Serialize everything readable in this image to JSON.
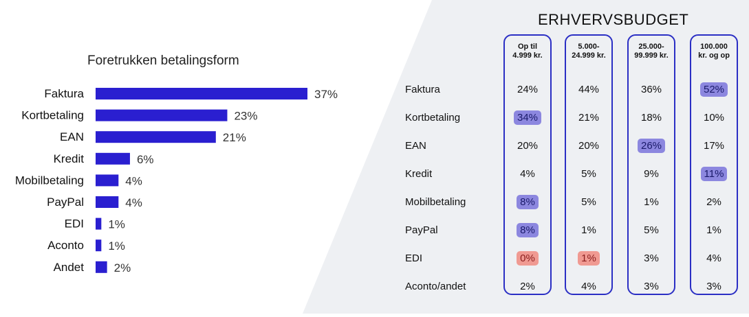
{
  "chart_data": [
    {
      "type": "bar",
      "orientation": "horizontal",
      "title": "Foretrukken betalingsform",
      "categories": [
        "Faktura",
        "Kortbetaling",
        "EAN",
        "Kredit",
        "Mobilbetaling",
        "PayPal",
        "EDI",
        "Aconto",
        "Andet"
      ],
      "values": [
        37,
        23,
        21,
        6,
        4,
        4,
        1,
        1,
        2
      ],
      "value_labels": [
        "37%",
        "23%",
        "21%",
        "6%",
        "4%",
        "4%",
        "1%",
        "1%",
        "2%"
      ],
      "unit": "%",
      "xlim": [
        0,
        37
      ],
      "bar_color": "#2a1fd0",
      "grid": false
    },
    {
      "type": "table",
      "title": "ERHVERVSBUDGET",
      "columns": [
        "Op til 4.999 kr.",
        "5.000-24.999 kr.",
        "25.000-99.999 kr.",
        "100.000 kr. og op"
      ],
      "rows": [
        "Faktura",
        "Kortbetaling",
        "EAN",
        "Kredit",
        "Mobilbetaling",
        "PayPal",
        "EDI",
        "Aconto/andet"
      ],
      "cells": [
        [
          "24%",
          "44%",
          "36%",
          "52%"
        ],
        [
          "34%",
          "21%",
          "18%",
          "10%"
        ],
        [
          "20%",
          "20%",
          "26%",
          "17%"
        ],
        [
          "4%",
          "5%",
          "9%",
          "11%"
        ],
        [
          "8%",
          "5%",
          "1%",
          "2%"
        ],
        [
          "8%",
          "1%",
          "5%",
          "1%"
        ],
        [
          "0%",
          "1%",
          "3%",
          "4%"
        ],
        [
          "2%",
          "4%",
          "3%",
          "3%"
        ]
      ],
      "highlight": [
        [
          "none",
          "none",
          "none",
          "blue"
        ],
        [
          "blue",
          "none",
          "none",
          "none"
        ],
        [
          "none",
          "none",
          "blue",
          "none"
        ],
        [
          "none",
          "none",
          "none",
          "blue"
        ],
        [
          "blue",
          "none",
          "none",
          "none"
        ],
        [
          "blue",
          "none",
          "none",
          "none"
        ],
        [
          "red",
          "red",
          "none",
          "none"
        ],
        [
          "none",
          "none",
          "none",
          "none"
        ]
      ]
    }
  ],
  "header_lines": [
    [
      "Op til",
      "4.999 kr."
    ],
    [
      "5.000-",
      "24.999 kr."
    ],
    [
      "25.000-",
      "99.999 kr."
    ],
    [
      "100.000",
      "kr. og op"
    ]
  ],
  "colors": {
    "bar": "#2a1fd0",
    "column_border": "#2a2ec4",
    "highlight_blue": "#8c87df",
    "highlight_red": "#f09a92",
    "panel_background": "#eef0f3"
  }
}
